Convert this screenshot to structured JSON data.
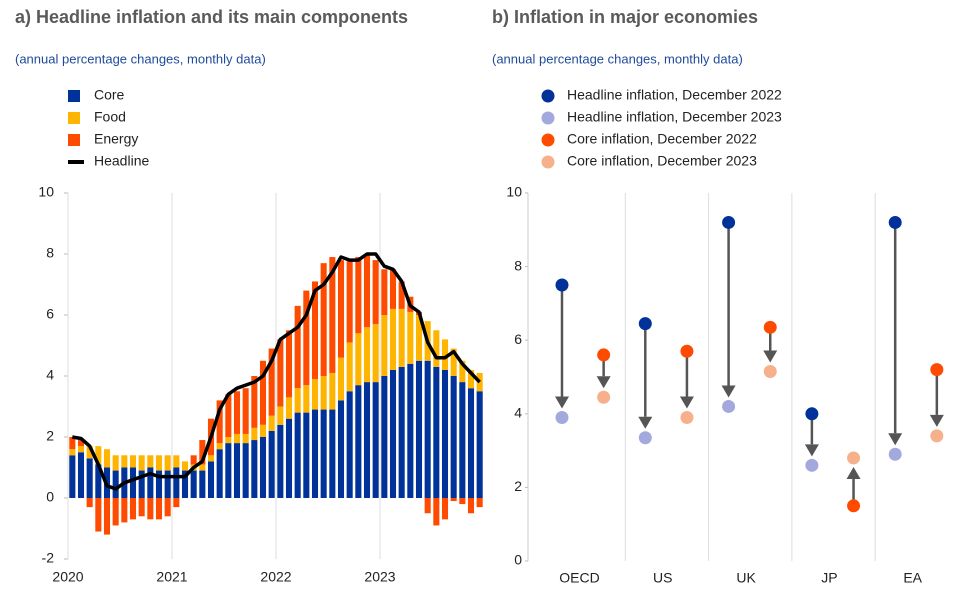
{
  "chart_data": [
    {
      "type": "bar",
      "stacked": true,
      "title": "a) Headline inflation and its main components",
      "subtitle": "(annual percentage changes, monthly data)",
      "categories": [
        "2020",
        null,
        null,
        null,
        null,
        null,
        null,
        null,
        null,
        null,
        null,
        null,
        "2021",
        null,
        null,
        null,
        null,
        null,
        null,
        null,
        null,
        null,
        null,
        null,
        "2022",
        null,
        null,
        null,
        null,
        null,
        null,
        null,
        null,
        null,
        null,
        null,
        "2023",
        null,
        null,
        null,
        null,
        null,
        null,
        null,
        null,
        null,
        null,
        null
      ],
      "series": [
        {
          "name": "Core",
          "color": "#003299",
          "values": [
            1.4,
            1.5,
            1.3,
            1.1,
            1.0,
            0.9,
            1.0,
            1.0,
            0.9,
            1.0,
            0.9,
            0.9,
            1.0,
            0.9,
            0.9,
            0.9,
            1.2,
            1.6,
            1.8,
            1.8,
            1.8,
            1.9,
            2.0,
            2.2,
            2.4,
            2.6,
            2.8,
            2.8,
            2.9,
            2.9,
            2.9,
            3.2,
            3.5,
            3.7,
            3.8,
            3.8,
            4.0,
            4.2,
            4.3,
            4.4,
            4.5,
            4.5,
            4.3,
            4.2,
            4.0,
            3.8,
            3.6,
            3.5
          ]
        },
        {
          "name": "Food",
          "color": "#ffb400",
          "values": [
            0.2,
            0.2,
            0.4,
            0.6,
            0.6,
            0.5,
            0.4,
            0.4,
            0.5,
            0.4,
            0.5,
            0.5,
            0.4,
            0.3,
            0.2,
            0.2,
            0.2,
            0.2,
            0.2,
            0.3,
            0.3,
            0.4,
            0.4,
            0.5,
            0.6,
            0.7,
            0.8,
            0.9,
            1.0,
            1.1,
            1.2,
            1.4,
            1.6,
            1.7,
            1.8,
            1.9,
            2.0,
            2.0,
            1.9,
            1.7,
            1.5,
            1.3,
            1.2,
            1.0,
            0.9,
            0.7,
            0.6,
            0.6
          ]
        },
        {
          "name": "Energy",
          "color": "#ff4b00",
          "values": [
            0.4,
            0.2,
            -0.3,
            -1.1,
            -1.2,
            -0.9,
            -0.8,
            -0.7,
            -0.6,
            -0.7,
            -0.7,
            -0.6,
            -0.3,
            0.0,
            0.3,
            0.8,
            1.2,
            1.4,
            1.4,
            1.4,
            1.5,
            1.7,
            2.1,
            2.2,
            2.2,
            2.2,
            2.7,
            3.1,
            3.2,
            3.7,
            3.8,
            3.2,
            2.7,
            2.5,
            2.4,
            2.1,
            1.5,
            1.3,
            0.9,
            0.5,
            0.1,
            -0.5,
            -0.9,
            -0.7,
            -0.1,
            -0.2,
            -0.5,
            -0.3
          ]
        },
        {
          "name": "Headline",
          "color": "#000000",
          "type": "line",
          "values": [
            2.0,
            1.95,
            1.7,
            1.1,
            0.4,
            0.3,
            0.5,
            0.6,
            0.7,
            0.8,
            0.7,
            0.7,
            0.7,
            0.7,
            1.0,
            1.2,
            2.0,
            2.9,
            3.4,
            3.6,
            3.7,
            3.8,
            4.0,
            4.5,
            5.2,
            5.4,
            5.6,
            6.0,
            6.8,
            7.0,
            7.4,
            7.9,
            7.8,
            7.8,
            8.0,
            8.0,
            7.6,
            7.5,
            7.1,
            6.3,
            6.1,
            5.1,
            4.6,
            4.6,
            4.8,
            4.4,
            4.1,
            3.8
          ]
        }
      ],
      "ylim": [
        -2,
        10
      ],
      "yticks": [
        -2,
        0,
        2,
        4,
        6,
        8,
        10
      ],
      "grid": "x"
    },
    {
      "type": "dot-arrow",
      "title": "b) Inflation in major economies",
      "subtitle": "(annual percentage changes, monthly data)",
      "categories": [
        "OECD",
        "US",
        "UK",
        "JP",
        "EA"
      ],
      "series": [
        {
          "name": "Headline inflation, December 2022",
          "color": "#003299",
          "values": [
            7.5,
            6.45,
            9.2,
            4.0,
            9.2
          ]
        },
        {
          "name": "Headline inflation, December 2023",
          "color": "#a4a9dd",
          "values": [
            3.9,
            3.35,
            4.2,
            2.6,
            2.9
          ]
        },
        {
          "name": "Core inflation, December 2022",
          "color": "#ff4b00",
          "values": [
            5.6,
            5.7,
            6.35,
            1.5,
            5.2
          ]
        },
        {
          "name": "Core inflation, December 2023",
          "color": "#f6b08b",
          "values": [
            4.45,
            3.9,
            5.15,
            2.8,
            3.4
          ]
        }
      ],
      "ylim": [
        0,
        10
      ],
      "yticks": [
        0,
        2,
        4,
        6,
        8,
        10
      ],
      "grid": "x"
    }
  ]
}
